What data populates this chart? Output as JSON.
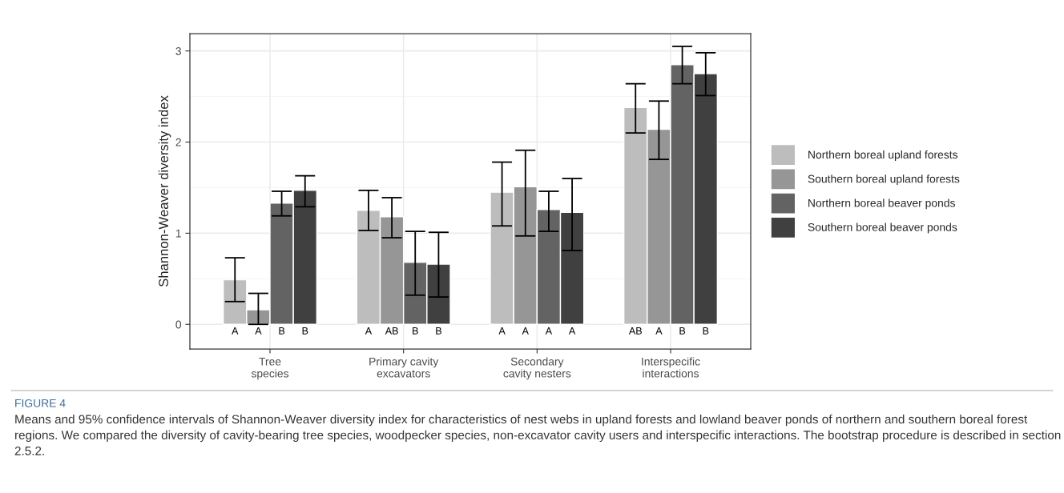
{
  "chart_data": {
    "type": "bar",
    "ylabel": "Shannon-Weaver diversity index",
    "categories": [
      "Tree\nspecies",
      "Primary cavity\nexcavators",
      "Secondary\ncavity nesters",
      "Interspecific\ninteractions"
    ],
    "series": [
      {
        "name": "Northern boreal upland forests",
        "color": "#bdbdbd",
        "values": [
          0.49,
          1.25,
          1.45,
          2.38
        ],
        "errors": [
          [
            0.25,
            0.73
          ],
          [
            1.03,
            1.47
          ],
          [
            1.08,
            1.78
          ],
          [
            2.1,
            2.64
          ]
        ],
        "value_labels": [
          "A",
          "A",
          "A",
          "AB"
        ]
      },
      {
        "name": "Southern boreal upland forests",
        "color": "#969696",
        "values": [
          0.16,
          1.18,
          1.51,
          2.14
        ],
        "errors": [
          [
            0.0,
            0.34
          ],
          [
            0.95,
            1.39
          ],
          [
            0.97,
            1.91
          ],
          [
            1.81,
            2.45
          ]
        ],
        "value_labels": [
          "A",
          "AB",
          "A",
          "A"
        ]
      },
      {
        "name": "Northern boreal beaver ponds",
        "color": "#636363",
        "values": [
          1.33,
          0.68,
          1.26,
          2.85
        ],
        "errors": [
          [
            1.19,
            1.46
          ],
          [
            0.32,
            1.02
          ],
          [
            1.02,
            1.46
          ],
          [
            2.64,
            3.05
          ]
        ],
        "value_labels": [
          "B",
          "B",
          "A",
          "B"
        ]
      },
      {
        "name": "Southern boreal beaver ponds",
        "color": "#404040",
        "values": [
          1.47,
          0.66,
          1.23,
          2.75
        ],
        "errors": [
          [
            1.29,
            1.63
          ],
          [
            0.3,
            1.01
          ],
          [
            0.81,
            1.6
          ],
          [
            2.51,
            2.98
          ]
        ],
        "value_labels": [
          "B",
          "B",
          "A",
          "B"
        ]
      }
    ],
    "ylim": [
      -0.27,
      3.19
    ],
    "yticks": [
      0,
      1,
      2,
      3
    ],
    "grid": true,
    "legend": "right",
    "annotations": [
      "FIGURE 4",
      "Means and 95% confidence intervals of Shannon-Weaver diversity index for characteristics of nest webs in upland forests and lowland beaver ponds of northern and southern boreal forest regions. We compared the diversity of cavity-bearing tree species, woodpecker species, non-excavator cavity users and interspecific interactions. The bootstrap procedure is described in section 2.5.2."
    ]
  }
}
